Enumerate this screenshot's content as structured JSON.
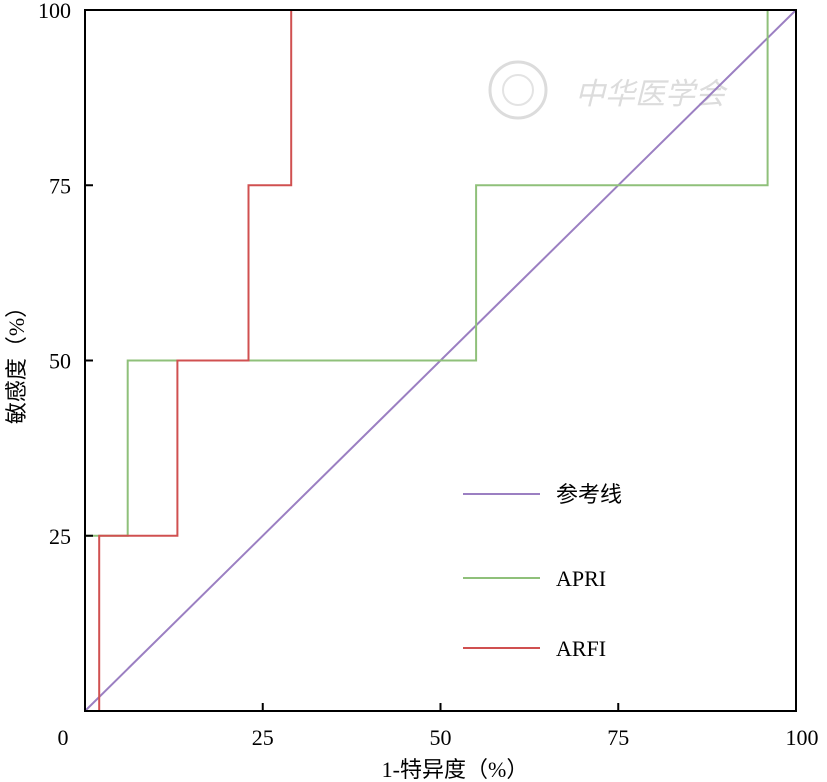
{
  "chart_data": {
    "type": "line",
    "title": "",
    "xlabel": "1-特异度（%）",
    "ylabel": "敏感度（%）",
    "xlim": [
      0,
      100
    ],
    "ylim": [
      0,
      100
    ],
    "x_ticks": [
      "0",
      "25",
      "50",
      "75",
      "100"
    ],
    "y_ticks": [
      "25",
      "50",
      "75",
      "100"
    ],
    "grid": false,
    "legend_position": "bottom-right",
    "watermark": "中华医学会",
    "series": [
      {
        "name": "参考线",
        "color": "#9b7fc2",
        "x": [
          0,
          100
        ],
        "y": [
          0,
          100
        ]
      },
      {
        "name": "APRI",
        "color": "#8fc07a",
        "x": [
          0,
          6,
          6,
          55,
          55,
          96,
          96,
          100
        ],
        "y": [
          25,
          25,
          50,
          50,
          75,
          75,
          100,
          100
        ]
      },
      {
        "name": "ARFI",
        "color": "#d05050",
        "x": [
          2,
          2,
          13,
          13,
          23,
          23,
          29,
          29,
          100
        ],
        "y": [
          0,
          25,
          25,
          50,
          50,
          75,
          75,
          100,
          100
        ]
      }
    ]
  }
}
